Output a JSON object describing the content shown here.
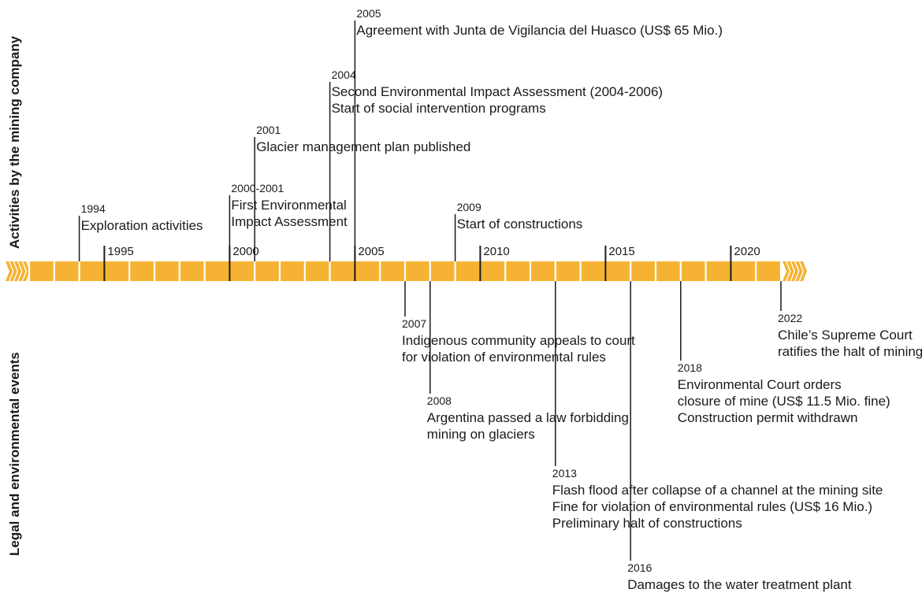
{
  "side_labels": {
    "top": "Activities by the mining company",
    "bottom": "Legal and environmental events"
  },
  "timeline": {
    "start_year": 1992,
    "end_year": 2022,
    "decades": [
      "1995",
      "2000",
      "2005",
      "2010",
      "2015",
      "2020"
    ],
    "bar_color": "#F6B333",
    "separator_color": "#ffffff",
    "tick_color": "#1a1a1a"
  },
  "events_top": [
    {
      "year_label": "1994",
      "year": 1994,
      "lines": [
        "Exploration activities"
      ]
    },
    {
      "year_label": "2000-2001",
      "year": 2000,
      "lines": [
        "First Environmental",
        "Impact Assessment"
      ]
    },
    {
      "year_label": "2001",
      "year": 2001,
      "lines": [
        "Glacier management plan published"
      ]
    },
    {
      "year_label": "2004",
      "year": 2004,
      "lines": [
        "Second Environmental Impact Assessment (2004-2006)",
        "Start of social intervention programs"
      ]
    },
    {
      "year_label": "2005",
      "year": 2005,
      "lines": [
        "Agreement with Junta de Vigilancia del Huasco (US$ 65 Mio.)"
      ]
    },
    {
      "year_label": "2009",
      "year": 2009,
      "lines": [
        "Start of constructions"
      ]
    }
  ],
  "events_bottom": [
    {
      "year_label": "2007",
      "year": 2007,
      "lines": [
        "Indigenous community appeals to court",
        "for violation of environmental rules"
      ]
    },
    {
      "year_label": "2008",
      "year": 2008,
      "lines": [
        "Argentina passed a law forbidding",
        "mining on glaciers"
      ]
    },
    {
      "year_label": "2013",
      "year": 2013,
      "lines": [
        "Flash flood after collapse of a channel at the mining site",
        "Fine for violation of environmental rules (US$ 16 Mio.)",
        "Preliminary halt of constructions"
      ]
    },
    {
      "year_label": "2016",
      "year": 2016,
      "lines": [
        "Damages to the water treatment plant"
      ]
    },
    {
      "year_label": "2018",
      "year": 2018,
      "lines": [
        "Environmental Court orders",
        "closure of mine (US$ 11.5 Mio. fine)",
        "Construction permit withdrawn"
      ]
    },
    {
      "year_label": "2022",
      "year": 2022,
      "lines": [
        "Chile’s Supreme Court",
        "ratifies the halt of mining"
      ]
    }
  ]
}
